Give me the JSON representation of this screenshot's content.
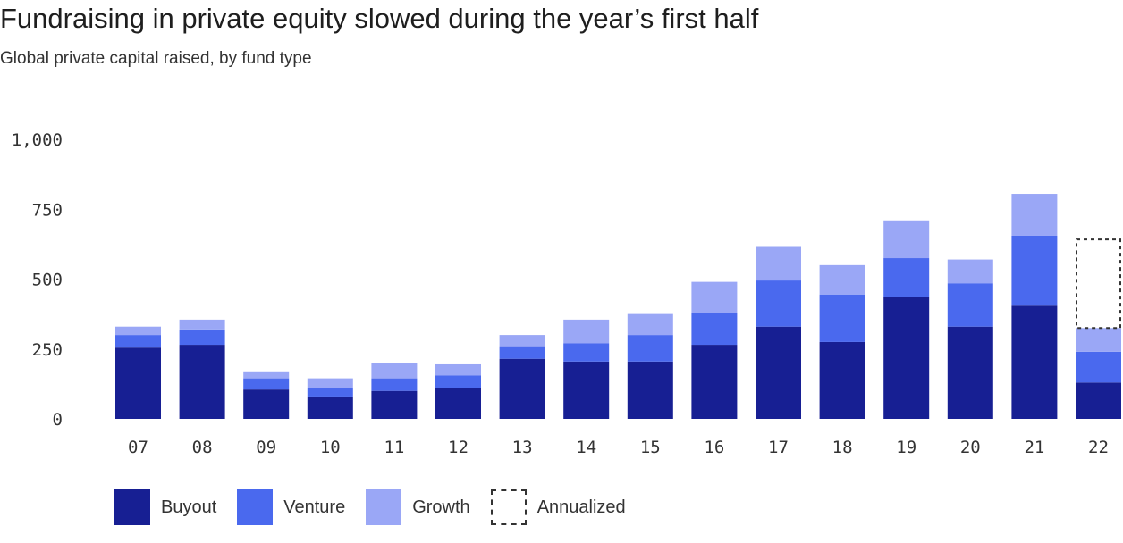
{
  "header": {
    "title": "Fundraising in private equity slowed during the year’s first half",
    "subtitle": "Global private capital raised, by fund type"
  },
  "colors": {
    "buyout": "#171f93",
    "venture": "#4a69ee",
    "growth": "#9aa7f6",
    "annualized": "#333333"
  },
  "chart_data": {
    "type": "bar",
    "stacked": true,
    "categories": [
      "07",
      "08",
      "09",
      "10",
      "11",
      "12",
      "13",
      "14",
      "15",
      "16",
      "17",
      "18",
      "19",
      "20",
      "21",
      "22"
    ],
    "series": [
      {
        "name": "Buyout",
        "values": [
          255,
          265,
          105,
          80,
          100,
          110,
          215,
          205,
          205,
          265,
          330,
          275,
          435,
          330,
          405,
          130
        ]
      },
      {
        "name": "Venture",
        "values": [
          45,
          55,
          40,
          30,
          45,
          45,
          45,
          65,
          95,
          115,
          165,
          170,
          140,
          155,
          250,
          110
        ]
      },
      {
        "name": "Growth",
        "values": [
          30,
          35,
          25,
          35,
          55,
          40,
          40,
          85,
          75,
          110,
          120,
          105,
          135,
          85,
          150,
          85
        ]
      },
      {
        "name": "Annualized",
        "values": [
          null,
          null,
          null,
          null,
          null,
          null,
          null,
          null,
          null,
          null,
          null,
          null,
          null,
          null,
          null,
          320
        ],
        "style": "dashed-outline"
      }
    ],
    "ylim": [
      0,
      1000
    ],
    "yticks": [
      0,
      250,
      500,
      750,
      1000
    ],
    "ytick_labels": [
      "0",
      "250",
      "500",
      "750",
      "1,000"
    ],
    "grid": false,
    "legend": "bottom-left",
    "xlabel": "",
    "ylabel": ""
  },
  "legend": {
    "items": [
      {
        "label": "Buyout"
      },
      {
        "label": "Venture"
      },
      {
        "label": "Growth"
      },
      {
        "label": "Annualized"
      }
    ]
  }
}
